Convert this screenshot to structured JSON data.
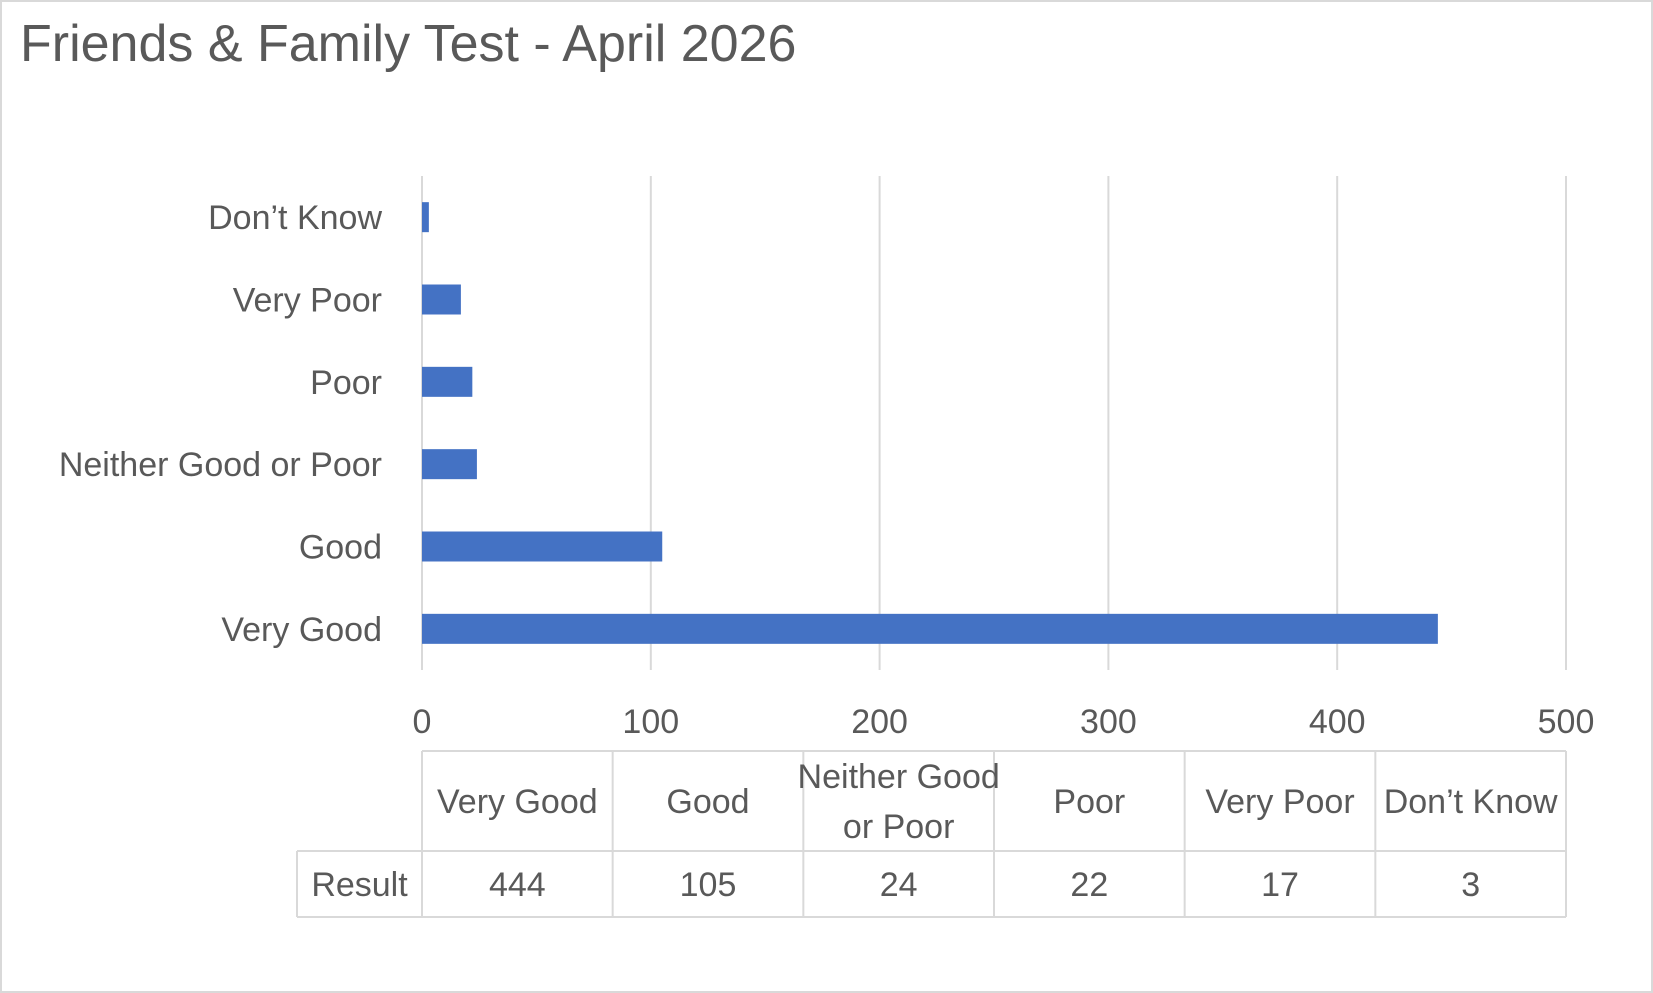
{
  "chart_data": {
    "type": "bar",
    "orientation": "horizontal",
    "title": "Friends & Family Test - April 2026",
    "categories": [
      "Very Good",
      "Good",
      "Neither Good or Poor",
      "Poor",
      "Very Poor",
      "Don’t Know"
    ],
    "table_headers": [
      [
        "Very Good"
      ],
      [
        "Good"
      ],
      [
        "Neither Good",
        "or Poor"
      ],
      [
        "Poor"
      ],
      [
        "Very Poor"
      ],
      [
        "Don’t Know"
      ]
    ],
    "series": [
      {
        "name": "Result",
        "values": [
          444,
          105,
          24,
          22,
          17,
          3
        ]
      }
    ],
    "xlim": [
      0,
      500
    ],
    "x_ticks": [
      0,
      100,
      200,
      300,
      400,
      500
    ],
    "grid": "vertical",
    "data_table": true,
    "bar_color": "#4472c4",
    "grid_color": "#d9d9d9",
    "text_color": "#595959"
  }
}
